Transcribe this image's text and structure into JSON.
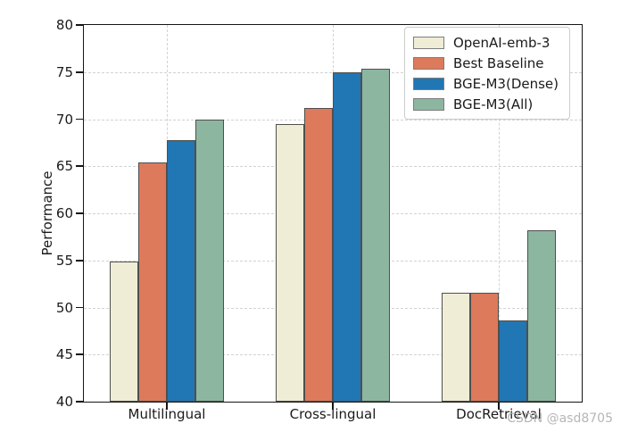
{
  "chart_data": {
    "type": "bar",
    "title": "",
    "xlabel": "",
    "ylabel": "Performance",
    "ylim": [
      40,
      80
    ],
    "yticks": [
      40,
      45,
      50,
      55,
      60,
      65,
      70,
      75,
      80
    ],
    "grid": "dashed",
    "legend_position": "upper right",
    "categories": [
      "Multilingual",
      "Cross-lingual",
      "DocRetrieval"
    ],
    "series": [
      {
        "name": "OpenAI-emb-3",
        "color": "#f0edd6",
        "values": [
          54.9,
          69.5,
          51.6
        ]
      },
      {
        "name": "Best Baseline",
        "color": "#dd7a5b",
        "values": [
          65.4,
          71.2,
          51.6
        ]
      },
      {
        "name": "BGE-M3(Dense)",
        "color": "#2176b4",
        "values": [
          67.8,
          75.0,
          48.6
        ]
      },
      {
        "name": "BGE-M3(All)",
        "color": "#8db6a1",
        "values": [
          70.0,
          75.4,
          58.2
        ]
      }
    ]
  },
  "watermark": "CSDN @asd8705"
}
